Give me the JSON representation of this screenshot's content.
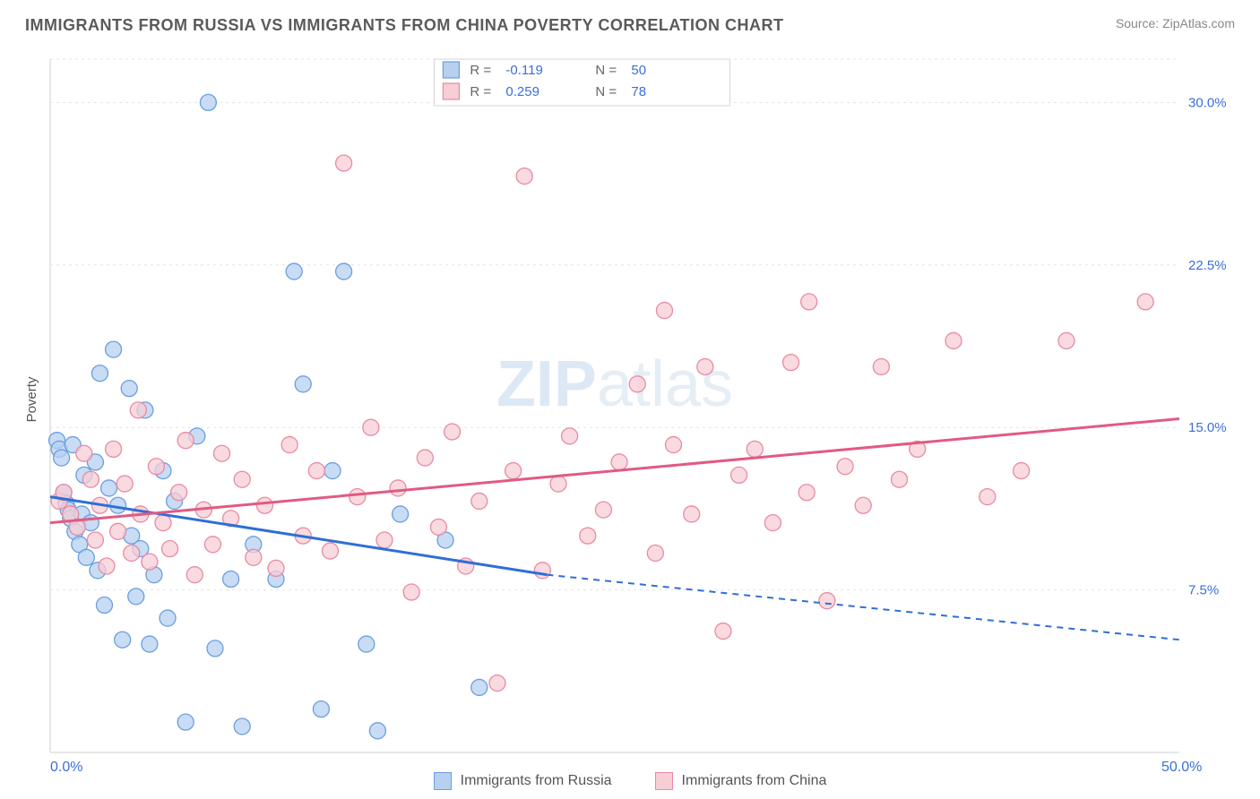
{
  "title": "IMMIGRANTS FROM RUSSIA VS IMMIGRANTS FROM CHINA POVERTY CORRELATION CHART",
  "source": "Source: ZipAtlas.com",
  "ylabel": "Poverty",
  "watermark": {
    "text1": "ZIP",
    "text2": "atlas",
    "fill": "#7aa7d9",
    "fontsize": 72
  },
  "chart": {
    "type": "scatter",
    "background_color": "#ffffff",
    "grid_color": "#e4e4e4",
    "axis_color": "#cfcfcf",
    "xlim": [
      0,
      50
    ],
    "ylim": [
      0,
      32
    ],
    "y_ticks": [
      7.5,
      15.0,
      22.5,
      30.0
    ],
    "y_tick_labels": [
      "7.5%",
      "15.0%",
      "22.5%",
      "30.0%"
    ],
    "x_start_label": "0.0%",
    "x_end_label": "50.0%",
    "tick_label_color": "#3a6fd8",
    "marker_radius": 9,
    "marker_stroke_width": 1.3,
    "series": [
      {
        "name": "Immigrants from Russia",
        "fill": "#b6d0f0",
        "stroke": "#6b9ee0",
        "line_color": "#2f6fd4",
        "R": "-0.119",
        "N": "50",
        "trend": {
          "x1": 0,
          "y1": 11.8,
          "x2": 22,
          "y2": 8.2,
          "x3": 50,
          "y3": 5.2
        },
        "points": [
          [
            0.3,
            14.4
          ],
          [
            0.4,
            14.0
          ],
          [
            0.5,
            13.6
          ],
          [
            0.6,
            12.0
          ],
          [
            0.7,
            11.5
          ],
          [
            0.8,
            11.2
          ],
          [
            0.9,
            10.8
          ],
          [
            1.0,
            14.2
          ],
          [
            1.1,
            10.2
          ],
          [
            1.3,
            9.6
          ],
          [
            1.4,
            11.0
          ],
          [
            1.5,
            12.8
          ],
          [
            1.6,
            9.0
          ],
          [
            1.8,
            10.6
          ],
          [
            2.0,
            13.4
          ],
          [
            2.1,
            8.4
          ],
          [
            2.2,
            17.5
          ],
          [
            2.4,
            6.8
          ],
          [
            2.6,
            12.2
          ],
          [
            2.8,
            18.6
          ],
          [
            3.0,
            11.4
          ],
          [
            3.2,
            5.2
          ],
          [
            3.5,
            16.8
          ],
          [
            3.6,
            10.0
          ],
          [
            3.8,
            7.2
          ],
          [
            4.0,
            9.4
          ],
          [
            4.2,
            15.8
          ],
          [
            4.4,
            5.0
          ],
          [
            4.6,
            8.2
          ],
          [
            5.0,
            13.0
          ],
          [
            5.2,
            6.2
          ],
          [
            5.5,
            11.6
          ],
          [
            6.0,
            1.4
          ],
          [
            6.5,
            14.6
          ],
          [
            7.0,
            30.0
          ],
          [
            7.3,
            4.8
          ],
          [
            8.0,
            8.0
          ],
          [
            8.5,
            1.2
          ],
          [
            9.0,
            9.6
          ],
          [
            10.0,
            8.0
          ],
          [
            10.8,
            22.2
          ],
          [
            11.2,
            17.0
          ],
          [
            12.0,
            2.0
          ],
          [
            12.5,
            13.0
          ],
          [
            13.0,
            22.2
          ],
          [
            14.0,
            5.0
          ],
          [
            14.5,
            1.0
          ],
          [
            15.5,
            11.0
          ],
          [
            17.5,
            9.8
          ],
          [
            19.0,
            3.0
          ]
        ]
      },
      {
        "name": "Immigrants from China",
        "fill": "#f7cdd6",
        "stroke": "#e98aa1",
        "line_color": "#e15a82",
        "R": "0.259",
        "N": "78",
        "trend": {
          "x1": 0,
          "y1": 10.6,
          "x2": 50,
          "y2": 15.4
        },
        "points": [
          [
            0.4,
            11.6
          ],
          [
            0.6,
            12.0
          ],
          [
            0.9,
            11.0
          ],
          [
            1.2,
            10.4
          ],
          [
            1.5,
            13.8
          ],
          [
            1.8,
            12.6
          ],
          [
            2.0,
            9.8
          ],
          [
            2.2,
            11.4
          ],
          [
            2.5,
            8.6
          ],
          [
            2.8,
            14.0
          ],
          [
            3.0,
            10.2
          ],
          [
            3.3,
            12.4
          ],
          [
            3.6,
            9.2
          ],
          [
            3.9,
            15.8
          ],
          [
            4.0,
            11.0
          ],
          [
            4.4,
            8.8
          ],
          [
            4.7,
            13.2
          ],
          [
            5.0,
            10.6
          ],
          [
            5.3,
            9.4
          ],
          [
            5.7,
            12.0
          ],
          [
            6.0,
            14.4
          ],
          [
            6.4,
            8.2
          ],
          [
            6.8,
            11.2
          ],
          [
            7.2,
            9.6
          ],
          [
            7.6,
            13.8
          ],
          [
            8.0,
            10.8
          ],
          [
            8.5,
            12.6
          ],
          [
            9.0,
            9.0
          ],
          [
            9.5,
            11.4
          ],
          [
            10.0,
            8.5
          ],
          [
            10.6,
            14.2
          ],
          [
            11.2,
            10.0
          ],
          [
            11.8,
            13.0
          ],
          [
            12.4,
            9.3
          ],
          [
            13.0,
            27.2
          ],
          [
            13.6,
            11.8
          ],
          [
            14.2,
            15.0
          ],
          [
            14.8,
            9.8
          ],
          [
            15.4,
            12.2
          ],
          [
            16.0,
            7.4
          ],
          [
            16.6,
            13.6
          ],
          [
            17.2,
            10.4
          ],
          [
            17.8,
            14.8
          ],
          [
            18.4,
            8.6
          ],
          [
            19.0,
            11.6
          ],
          [
            19.8,
            3.2
          ],
          [
            20.5,
            13.0
          ],
          [
            21.0,
            26.6
          ],
          [
            21.8,
            8.4
          ],
          [
            22.5,
            12.4
          ],
          [
            23.0,
            14.6
          ],
          [
            23.8,
            10.0
          ],
          [
            24.5,
            11.2
          ],
          [
            25.2,
            13.4
          ],
          [
            26.0,
            17.0
          ],
          [
            26.8,
            9.2
          ],
          [
            27.2,
            20.4
          ],
          [
            27.6,
            14.2
          ],
          [
            28.4,
            11.0
          ],
          [
            29.0,
            17.8
          ],
          [
            29.8,
            5.6
          ],
          [
            30.5,
            12.8
          ],
          [
            31.2,
            14.0
          ],
          [
            32.0,
            10.6
          ],
          [
            32.8,
            18.0
          ],
          [
            33.5,
            12.0
          ],
          [
            33.6,
            20.8
          ],
          [
            34.4,
            7.0
          ],
          [
            35.2,
            13.2
          ],
          [
            36.0,
            11.4
          ],
          [
            36.8,
            17.8
          ],
          [
            37.6,
            12.6
          ],
          [
            38.4,
            14.0
          ],
          [
            40.0,
            19.0
          ],
          [
            41.5,
            11.8
          ],
          [
            43.0,
            13.0
          ],
          [
            45.0,
            19.0
          ],
          [
            48.5,
            20.8
          ]
        ]
      }
    ]
  },
  "legend_top": {
    "border_color": "#d4d4d4",
    "label_R": "R =",
    "label_N": "N =",
    "text_color": "#666",
    "value_color": "#3a6fd8"
  },
  "legend_bottom": [
    {
      "label": "Immigrants from Russia",
      "fill": "#b6d0f0",
      "stroke": "#6b9ee0"
    },
    {
      "label": "Immigrants from China",
      "fill": "#f7cdd6",
      "stroke": "#e98aa1"
    }
  ]
}
